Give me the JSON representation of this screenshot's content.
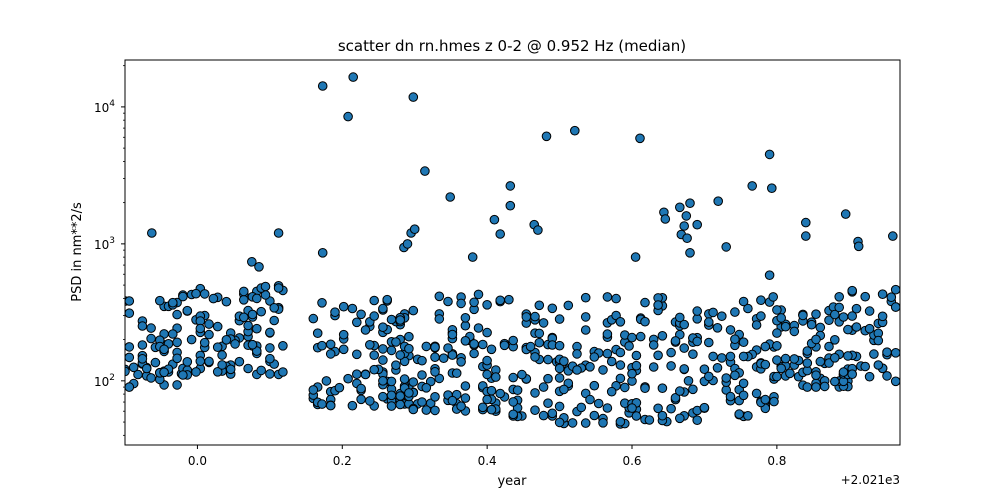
{
  "chart_data": {
    "type": "scatter",
    "title": "scatter dn rn.hmes z 0-2 @ 0.952 Hz (median)",
    "xlabel": "year",
    "ylabel": "PSD in nm**2/s",
    "x_offset_label": "+2.021e3",
    "xlim": [
      -0.1,
      0.97
    ],
    "ylim": [
      34,
      22000
    ],
    "yscale": "log",
    "x_ticks": [
      {
        "value": 0.0,
        "label": "0.0"
      },
      {
        "value": 0.2,
        "label": "0.2"
      },
      {
        "value": 0.4,
        "label": "0.4"
      },
      {
        "value": 0.6,
        "label": "0.6"
      },
      {
        "value": 0.8,
        "label": "0.8"
      }
    ],
    "y_ticks": [
      {
        "value": 100,
        "label": "10",
        "exp": "2"
      },
      {
        "value": 1000,
        "label": "10",
        "exp": "3"
      },
      {
        "value": 10000,
        "label": "10",
        "exp": "4"
      }
    ],
    "marker_color": "#1f77b4",
    "marker_edge": "#000000",
    "grid": false,
    "series": [
      {
        "values": [
          [
            0.173,
            14200
          ],
          [
            0.215,
            16500
          ],
          [
            0.208,
            8500
          ],
          [
            0.298,
            11800
          ],
          [
            0.314,
            3400
          ],
          [
            0.349,
            2200
          ],
          [
            0.432,
            2650
          ],
          [
            0.432,
            1900
          ],
          [
            0.41,
            1500
          ],
          [
            0.418,
            1180
          ],
          [
            0.465,
            1380
          ],
          [
            0.47,
            1260
          ],
          [
            0.482,
            6100
          ],
          [
            0.521,
            6700
          ],
          [
            0.611,
            5900
          ],
          [
            0.644,
            1700
          ],
          [
            0.646,
            1520
          ],
          [
            0.666,
            1850
          ],
          [
            0.68,
            1980
          ],
          [
            0.675,
            1600
          ],
          [
            0.668,
            1170
          ],
          [
            0.676,
            1100
          ],
          [
            0.69,
            1380
          ],
          [
            0.672,
            1350
          ],
          [
            0.68,
            860
          ],
          [
            0.719,
            2050
          ],
          [
            0.73,
            950
          ],
          [
            0.766,
            2650
          ],
          [
            0.79,
            4500
          ],
          [
            0.793,
            2550
          ],
          [
            0.84,
            1430
          ],
          [
            0.84,
            1140
          ],
          [
            0.895,
            1650
          ],
          [
            0.912,
            1040
          ],
          [
            0.913,
            960
          ],
          [
            0.96,
            1140
          ],
          [
            0.972,
            920
          ],
          [
            -0.063,
            1200
          ],
          [
            0.112,
            1200
          ],
          [
            0.085,
            680
          ],
          [
            0.075,
            740
          ],
          [
            0.173,
            860
          ],
          [
            0.295,
            1200
          ],
          [
            0.3,
            1280
          ],
          [
            0.285,
            940
          ],
          [
            0.29,
            1000
          ],
          [
            0.605,
            800
          ],
          [
            0.79,
            590
          ],
          [
            0.795,
            410
          ],
          [
            0.38,
            800
          ]
        ]
      }
    ]
  }
}
